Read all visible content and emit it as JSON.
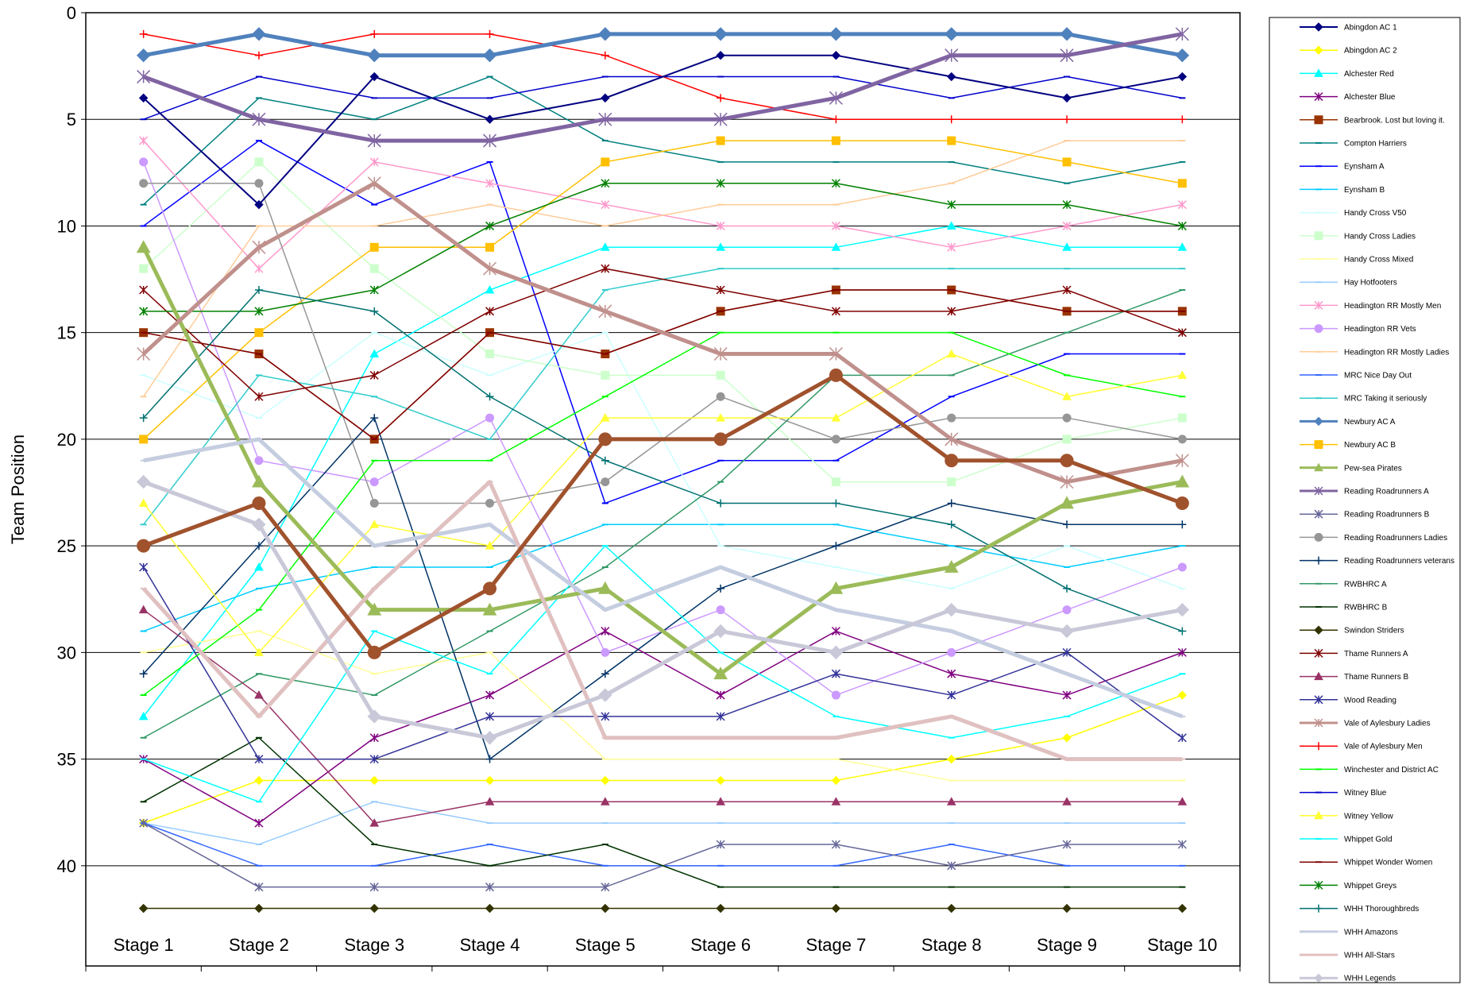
{
  "chart_data": {
    "type": "line",
    "title": "",
    "xlabel": "",
    "ylabel": "Team Position",
    "ylim": [
      0,
      42
    ],
    "y_inverted": true,
    "y_ticks": [
      0,
      5,
      10,
      15,
      20,
      25,
      30,
      35,
      40
    ],
    "grid": "horizontal",
    "legend_position": "right",
    "categories": [
      "Stage 1",
      "Stage 2",
      "Stage 3",
      "Stage 4",
      "Stage 5",
      "Stage 6",
      "Stage 7",
      "Stage 8",
      "Stage 9",
      "Stage 10"
    ],
    "series": [
      {
        "name": "Abingdon AC 1",
        "color": "#000080",
        "marker": "diamond",
        "width": 2,
        "values": [
          4,
          9,
          3,
          5,
          4,
          2,
          2,
          3,
          4,
          3
        ]
      },
      {
        "name": "Abingdon AC 2",
        "color": "#FFFF00",
        "marker": "diamond",
        "width": 1.5,
        "values": [
          38,
          36,
          36,
          36,
          36,
          36,
          36,
          35,
          34,
          32
        ]
      },
      {
        "name": "Alchester Red",
        "color": "#00FFFF",
        "marker": "triangle",
        "width": 1.5,
        "values": [
          33,
          26,
          16,
          13,
          11,
          11,
          11,
          10,
          11,
          11
        ]
      },
      {
        "name": "Alchester Blue",
        "color": "#800080",
        "marker": "star",
        "width": 1.5,
        "values": [
          35,
          38,
          34,
          32,
          29,
          32,
          29,
          31,
          32,
          30
        ]
      },
      {
        "name": "Bearbrook. Lost but loving it.",
        "color": "#993300",
        "marker": "square",
        "width": 1.5,
        "values": [
          15,
          16,
          20,
          15,
          16,
          14,
          13,
          13,
          14,
          14
        ]
      },
      {
        "name": "Compton Harriers",
        "color": "#008080",
        "marker": "dash",
        "width": 1.5,
        "values": [
          9,
          4,
          5,
          3,
          6,
          7,
          7,
          7,
          8,
          7
        ]
      },
      {
        "name": "Eynsham A",
        "color": "#0000FF",
        "marker": "dash",
        "width": 1.5,
        "values": [
          10,
          6,
          9,
          7,
          23,
          21,
          21,
          18,
          16,
          16
        ]
      },
      {
        "name": "Eynsham B",
        "color": "#00CCFF",
        "marker": "dash",
        "width": 1.5,
        "values": [
          29,
          27,
          26,
          26,
          24,
          24,
          24,
          25,
          26,
          25
        ]
      },
      {
        "name": "Handy Cross V50",
        "color": "#CCFFFF",
        "marker": "dash",
        "width": 1.5,
        "values": [
          17,
          19,
          15,
          17,
          15,
          25,
          26,
          27,
          25,
          27
        ]
      },
      {
        "name": "Handy Cross Ladies",
        "color": "#CCFFCC",
        "marker": "square",
        "width": 1.5,
        "values": [
          12,
          7,
          12,
          16,
          17,
          17,
          22,
          22,
          20,
          19
        ]
      },
      {
        "name": "Handy Cross Mixed",
        "color": "#FFFF99",
        "marker": "dash",
        "width": 1.5,
        "values": [
          30,
          29,
          31,
          30,
          35,
          35,
          35,
          36,
          36,
          36
        ]
      },
      {
        "name": "Hay Hotfooters",
        "color": "#99CCFF",
        "marker": "dash",
        "width": 1.5,
        "values": [
          38,
          39,
          37,
          38,
          38,
          38,
          38,
          38,
          38,
          38
        ]
      },
      {
        "name": "Headington RR Mostly Men",
        "color": "#FF99CC",
        "marker": "star",
        "width": 1.5,
        "values": [
          6,
          12,
          7,
          8,
          9,
          10,
          10,
          11,
          10,
          9
        ]
      },
      {
        "name": "Headington RR Vets",
        "color": "#CC99FF",
        "marker": "circle",
        "width": 1.5,
        "values": [
          7,
          21,
          22,
          19,
          30,
          28,
          32,
          30,
          28,
          26
        ]
      },
      {
        "name": "Headington RR Mostly Ladies",
        "color": "#FFCC99",
        "marker": "dash",
        "width": 1.5,
        "values": [
          18,
          10,
          10,
          9,
          10,
          9,
          9,
          8,
          6,
          6
        ]
      },
      {
        "name": "MRC Nice Day Out",
        "color": "#3366FF",
        "marker": "dash",
        "width": 1.5,
        "values": [
          38,
          40,
          40,
          39,
          40,
          40,
          40,
          39,
          40,
          40
        ]
      },
      {
        "name": "MRC Taking it seriously",
        "color": "#33CCCC",
        "marker": "dash",
        "width": 1.5,
        "values": [
          24,
          17,
          18,
          20,
          13,
          12,
          12,
          12,
          12,
          12
        ]
      },
      {
        "name": "Newbury AC A",
        "color": "#4F81BD",
        "marker": "diamond",
        "width": 5,
        "values": [
          2,
          1,
          2,
          2,
          1,
          1,
          1,
          1,
          1,
          2
        ]
      },
      {
        "name": "Newbury AC B",
        "color": "#FFC000",
        "marker": "square",
        "width": 1.5,
        "values": [
          20,
          15,
          11,
          11,
          7,
          6,
          6,
          6,
          7,
          8
        ]
      },
      {
        "name": "Pew-sea Pirates",
        "color": "#9BBB59",
        "marker": "triangle",
        "width": 5,
        "values": [
          11,
          22,
          28,
          28,
          27,
          31,
          27,
          26,
          23,
          22
        ]
      },
      {
        "name": "Reading Roadrunners A",
        "color": "#8064A2",
        "marker": "star",
        "width": 5,
        "values": [
          3,
          5,
          6,
          6,
          5,
          5,
          4,
          2,
          2,
          1
        ]
      },
      {
        "name": "Reading Roadrunners B",
        "color": "#666699",
        "marker": "star",
        "width": 1.5,
        "values": [
          38,
          41,
          41,
          41,
          41,
          39,
          39,
          40,
          39,
          39
        ]
      },
      {
        "name": "Reading Roadrunners Ladies",
        "color": "#969696",
        "marker": "circle",
        "width": 1.5,
        "values": [
          8,
          8,
          23,
          23,
          22,
          18,
          20,
          19,
          19,
          20
        ]
      },
      {
        "name": "Reading Roadrunners veterans",
        "color": "#003366",
        "marker": "plus",
        "width": 1.5,
        "values": [
          31,
          25,
          19,
          35,
          31,
          27,
          25,
          23,
          24,
          24
        ]
      },
      {
        "name": "RWBHRC A",
        "color": "#339966",
        "marker": "dash",
        "width": 1.5,
        "values": [
          34,
          31,
          32,
          29,
          26,
          22,
          17,
          17,
          15,
          13
        ]
      },
      {
        "name": "RWBHRC B",
        "color": "#003300",
        "marker": "dash",
        "width": 1.5,
        "values": [
          37,
          34,
          39,
          40,
          39,
          41,
          41,
          41,
          41,
          41
        ]
      },
      {
        "name": "Swindon Striders",
        "color": "#333300",
        "marker": "diamond",
        "width": 1.5,
        "values": [
          42,
          42,
          42,
          42,
          42,
          42,
          42,
          42,
          42,
          42
        ]
      },
      {
        "name": "Thame Runners A",
        "color": "#800000",
        "marker": "star",
        "width": 1.5,
        "values": [
          13,
          18,
          17,
          14,
          12,
          13,
          14,
          14,
          13,
          15
        ]
      },
      {
        "name": "Thame Runners B",
        "color": "#993366",
        "marker": "triangle",
        "width": 1.5,
        "values": [
          28,
          32,
          38,
          37,
          37,
          37,
          37,
          37,
          37,
          37
        ]
      },
      {
        "name": "Wood Reading",
        "color": "#333399",
        "marker": "star",
        "width": 1.5,
        "values": [
          26,
          35,
          35,
          33,
          33,
          33,
          31,
          32,
          30,
          34
        ]
      },
      {
        "name": "Vale of Aylesbury Ladies",
        "color": "#C0908C",
        "marker": "star",
        "width": 5,
        "values": [
          16,
          11,
          8,
          12,
          14,
          16,
          16,
          20,
          22,
          21
        ]
      },
      {
        "name": "Vale of Aylesbury Men",
        "color": "#FF0000",
        "marker": "plus",
        "width": 1.5,
        "values": [
          1,
          2,
          1,
          1,
          2,
          4,
          5,
          5,
          5,
          5
        ]
      },
      {
        "name": "Winchester and District AC",
        "color": "#00FF00",
        "marker": "dash",
        "width": 1.5,
        "values": [
          32,
          28,
          21,
          21,
          18,
          15,
          15,
          15,
          17,
          18
        ]
      },
      {
        "name": "Witney Blue",
        "color": "#0000CC",
        "marker": "dash",
        "width": 1.5,
        "values": [
          5,
          3,
          4,
          4,
          3,
          3,
          3,
          4,
          3,
          4
        ]
      },
      {
        "name": "Witney Yellow",
        "color": "#FFFF33",
        "marker": "triangle",
        "width": 1.5,
        "values": [
          23,
          30,
          24,
          25,
          19,
          19,
          19,
          16,
          18,
          17
        ]
      },
      {
        "name": "Whippet Gold",
        "color": "#00FFFF",
        "marker": "dash",
        "width": 1.5,
        "values": [
          35,
          37,
          29,
          31,
          25,
          30,
          33,
          34,
          33,
          31
        ]
      },
      {
        "name": "Whippet Wonder Women",
        "color": "#800000",
        "marker": "dash",
        "width": 1.5,
        "values": [
          15,
          16,
          20,
          15,
          16,
          14,
          13,
          13,
          14,
          14
        ]
      },
      {
        "name": "Whippet Greys",
        "color": "#008000",
        "marker": "star",
        "width": 1.5,
        "values": [
          14,
          14,
          13,
          10,
          8,
          8,
          8,
          9,
          9,
          10
        ]
      },
      {
        "name": "WHH Thoroughbreds",
        "color": "#007070",
        "marker": "plus",
        "width": 1.5,
        "values": [
          19,
          13,
          14,
          18,
          21,
          23,
          23,
          24,
          27,
          29
        ]
      },
      {
        "name": "WHH Amazons",
        "color": "#C5CDE0",
        "marker": "dash",
        "width": 5,
        "values": [
          21,
          20,
          25,
          24,
          28,
          26,
          28,
          29,
          31,
          33
        ]
      },
      {
        "name": "WHH All-Stars",
        "color": "#E0C0C0",
        "marker": "dash",
        "width": 5,
        "values": [
          27,
          33,
          27,
          22,
          34,
          34,
          34,
          33,
          35,
          35
        ]
      },
      {
        "name": "WHH Legends",
        "color": "#C8C8D8",
        "marker": "diamond",
        "width": 5,
        "values": [
          22,
          24,
          33,
          34,
          32,
          29,
          30,
          28,
          29,
          28
        ]
      },
      {
        "name": "",
        "color": "#A0522D",
        "marker": "circle",
        "width": 5,
        "values": [
          25,
          23,
          30,
          27,
          20,
          20,
          17,
          21,
          21,
          23
        ]
      }
    ]
  }
}
